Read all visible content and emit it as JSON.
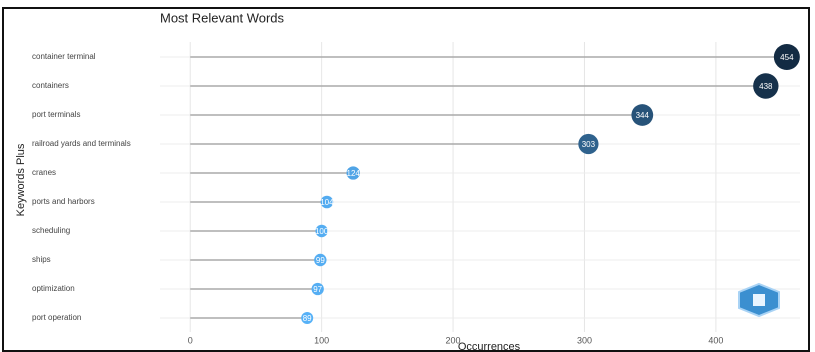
{
  "chart_data": {
    "type": "lollipop",
    "title": "Most Relevant Words",
    "x_label": "Occurrences",
    "y_label": "Keywords Plus",
    "categories": [
      "container terminal",
      "containers",
      "port terminals",
      "railroad yards and terminals",
      "cranes",
      "ports and harbors",
      "scheduling",
      "ships",
      "optimization",
      "port operation"
    ],
    "values": [
      454,
      438,
      344,
      303,
      124,
      104,
      100,
      99,
      97,
      89
    ],
    "xlim": [
      -23,
      464
    ],
    "xticks": [
      0,
      100,
      200,
      300,
      400
    ],
    "color_low": "#56b1f7",
    "color_high": "#132b43",
    "grid": true
  }
}
